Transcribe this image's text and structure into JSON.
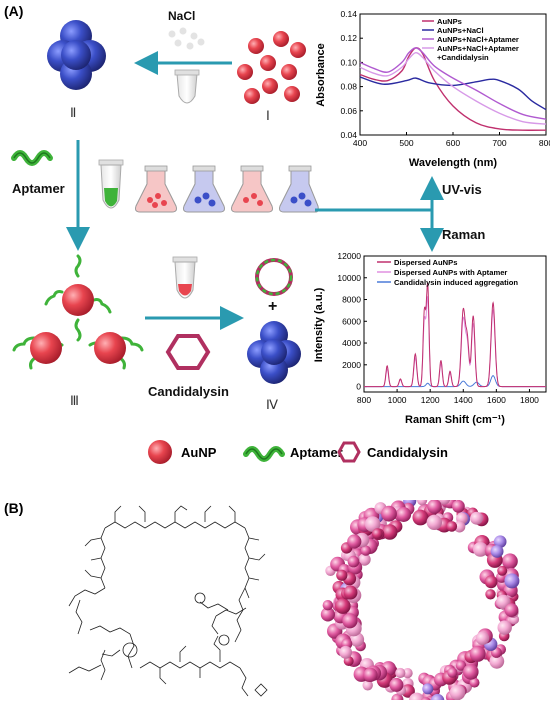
{
  "panelA": {
    "label": "(A)",
    "nacl": "NaCl",
    "aptamer": "Aptamer",
    "candidalysin": "Candidalysin",
    "uvvis": "UV-vis",
    "raman": "Raman",
    "plus": "+",
    "roman": {
      "I": "Ⅰ",
      "II": "Ⅱ",
      "III": "Ⅲ",
      "IV": "Ⅳ"
    },
    "legend": {
      "aunp": "AuNP",
      "aptamer": "Aptamer",
      "candidalysin": "Candidalysin"
    },
    "colors": {
      "gold_red": "#e8454f",
      "aggregate_blue": "#3b4fc8",
      "arrow": "#2a9ab0",
      "aptamer_green": "#3fb33a",
      "candidalysin": "#b03060"
    }
  },
  "panelB": {
    "label": "(B)"
  },
  "chart_data": [
    {
      "type": "line",
      "xlabel": "Wavelength (nm)",
      "ylabel": "Absorbance",
      "xlim": [
        400,
        800
      ],
      "ylim": [
        0.04,
        0.14
      ],
      "xticks": [
        "400",
        "500",
        "600",
        "700",
        "800"
      ],
      "yticks": [
        "0.04",
        "0.06",
        "0.08",
        "0.10",
        "0.12",
        "0.14"
      ],
      "legend_position": "top-right",
      "series": [
        {
          "name": "AuNPs",
          "color": "#c0306e",
          "x": [
            400,
            430,
            460,
            490,
            505,
            520,
            535,
            560,
            600,
            650,
            700,
            750,
            800
          ],
          "y": [
            0.09,
            0.086,
            0.085,
            0.093,
            0.105,
            0.112,
            0.107,
            0.085,
            0.064,
            0.05,
            0.045,
            0.044,
            0.044
          ]
        },
        {
          "name": "AuNPs+NaCl",
          "color": "#2a2aa0",
          "x": [
            400,
            450,
            500,
            520,
            550,
            600,
            650,
            680,
            700,
            740,
            770,
            800
          ],
          "y": [
            0.088,
            0.082,
            0.085,
            0.087,
            0.083,
            0.081,
            0.084,
            0.086,
            0.085,
            0.078,
            0.068,
            0.061
          ]
        },
        {
          "name": "AuNPs+NaCl+Aptamer",
          "color": "#b05ad0",
          "x": [
            400,
            430,
            460,
            490,
            505,
            520,
            535,
            560,
            600,
            650,
            700,
            750,
            800
          ],
          "y": [
            0.1,
            0.095,
            0.092,
            0.1,
            0.108,
            0.112,
            0.108,
            0.097,
            0.087,
            0.077,
            0.066,
            0.057,
            0.053
          ]
        },
        {
          "name": "AuNPs+NaCl+Aptamer+Candidalysin",
          "color": "#d79ae8",
          "x": [
            400,
            430,
            460,
            490,
            505,
            520,
            535,
            560,
            600,
            650,
            700,
            750,
            800
          ],
          "y": [
            0.096,
            0.091,
            0.089,
            0.096,
            0.103,
            0.108,
            0.104,
            0.093,
            0.08,
            0.068,
            0.058,
            0.051,
            0.049
          ]
        }
      ]
    },
    {
      "type": "line",
      "xlabel": "Raman Shift (cm⁻¹)",
      "ylabel": "Intensity (a.u.)",
      "xlim": [
        800,
        1900
      ],
      "ylim": [
        -500,
        12000
      ],
      "xticks": [
        "800",
        "1000",
        "1200",
        "1400",
        "1600",
        "1800"
      ],
      "yticks": [
        "0",
        "2000",
        "4000",
        "6000",
        "8000",
        "10000",
        "12000"
      ],
      "legend_position": "top-right",
      "series": [
        {
          "name": "Dispersed AuNPs",
          "color": "#c0306e",
          "peaks": [
            [
              940,
              1900,
              8
            ],
            [
              1020,
              700,
              8
            ],
            [
              1110,
              3000,
              9
            ],
            [
              1165,
              6800,
              8
            ],
            [
              1185,
              9200,
              8
            ],
            [
              1265,
              2400,
              8
            ],
            [
              1320,
              1400,
              8
            ],
            [
              1400,
              7000,
              12
            ],
            [
              1425,
              4000,
              10
            ],
            [
              1460,
              6500,
              10
            ],
            [
              1580,
              7700,
              12
            ]
          ]
        },
        {
          "name": "Dispersed AuNPs with Aptamer",
          "color": "#e090e0",
          "peaks": [
            [
              940,
              1600,
              8
            ],
            [
              1020,
              600,
              8
            ],
            [
              1110,
              2600,
              9
            ],
            [
              1165,
              6000,
              8
            ],
            [
              1185,
              8000,
              8
            ],
            [
              1265,
              2100,
              8
            ],
            [
              1320,
              1200,
              8
            ],
            [
              1400,
              6200,
              12
            ],
            [
              1425,
              3600,
              10
            ],
            [
              1460,
              5800,
              10
            ],
            [
              1580,
              7000,
              12
            ]
          ]
        },
        {
          "name": "Candidalysin induced aggregation",
          "color": "#4a7ad8",
          "peaks": [
            [
              1185,
              300,
              10
            ],
            [
              1400,
              500,
              15
            ],
            [
              1480,
              400,
              15
            ],
            [
              1580,
              1000,
              14
            ]
          ]
        }
      ]
    }
  ]
}
